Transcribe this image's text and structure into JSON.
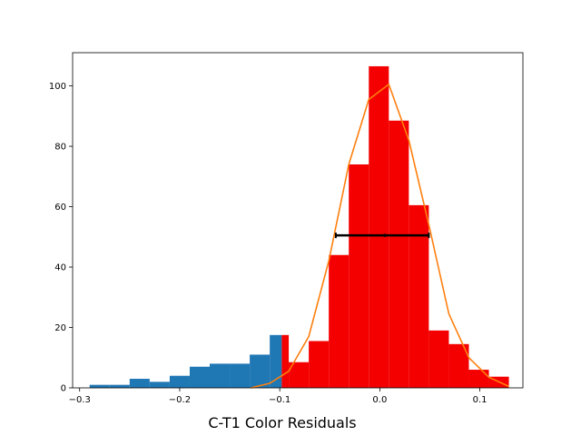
{
  "chart_data": {
    "type": "bar",
    "title": "",
    "xlabel": "C-T1 Color Residuals",
    "ylabel": "",
    "xlim": [
      -0.307,
      0.143
    ],
    "ylim": [
      0,
      111
    ],
    "grid": false,
    "legend": "none",
    "x_ticks": [
      {
        "value": -0.3,
        "label": "−0.3"
      },
      {
        "value": -0.2,
        "label": "−0.2"
      },
      {
        "value": -0.1,
        "label": "−0.1"
      },
      {
        "value": 0.0,
        "label": "0.0"
      },
      {
        "value": 0.1,
        "label": "0.1"
      }
    ],
    "y_ticks": [
      {
        "value": 0,
        "label": "0"
      },
      {
        "value": 20,
        "label": "20"
      },
      {
        "value": 40,
        "label": "40"
      },
      {
        "value": 60,
        "label": "60"
      },
      {
        "value": 80,
        "label": "80"
      },
      {
        "value": 100,
        "label": "100"
      }
    ],
    "series": [
      {
        "kind": "histogram",
        "color": "#1f77b4",
        "bins": [
          {
            "x0": -0.29,
            "x1": -0.27,
            "count": 1
          },
          {
            "x0": -0.27,
            "x1": -0.25,
            "count": 1
          },
          {
            "x0": -0.25,
            "x1": -0.23,
            "count": 3
          },
          {
            "x0": -0.23,
            "x1": -0.21,
            "count": 2
          },
          {
            "x0": -0.21,
            "x1": -0.19,
            "count": 4
          },
          {
            "x0": -0.19,
            "x1": -0.17,
            "count": 7
          },
          {
            "x0": -0.17,
            "x1": -0.15,
            "count": 8
          },
          {
            "x0": -0.15,
            "x1": -0.13,
            "count": 8
          },
          {
            "x0": -0.13,
            "x1": -0.11,
            "count": 11
          },
          {
            "x0": -0.11,
            "x1": -0.098,
            "count": 17.5
          }
        ]
      },
      {
        "kind": "histogram",
        "color": "#f50000",
        "bins": [
          {
            "x0": -0.098,
            "x1": -0.091,
            "count": 17.5
          },
          {
            "x0": -0.091,
            "x1": -0.071,
            "count": 8.5
          },
          {
            "x0": -0.071,
            "x1": -0.051,
            "count": 15.5
          },
          {
            "x0": -0.051,
            "x1": -0.031,
            "count": 44
          },
          {
            "x0": -0.031,
            "x1": -0.011,
            "count": 74
          },
          {
            "x0": -0.011,
            "x1": 0.009,
            "count": 106.5
          },
          {
            "x0": 0.009,
            "x1": 0.029,
            "count": 88.5
          },
          {
            "x0": 0.029,
            "x1": 0.049,
            "count": 60.5
          },
          {
            "x0": 0.049,
            "x1": 0.069,
            "count": 19
          },
          {
            "x0": 0.069,
            "x1": 0.089,
            "count": 14.5
          },
          {
            "x0": 0.089,
            "x1": 0.109,
            "count": 6
          },
          {
            "x0": 0.109,
            "x1": 0.129,
            "count": 3.7
          }
        ]
      },
      {
        "kind": "line",
        "color": "#ff7f0e",
        "points": [
          {
            "x": -0.129,
            "y": 0
          },
          {
            "x": -0.11,
            "y": 1.5
          },
          {
            "x": -0.091,
            "y": 5.5
          },
          {
            "x": -0.071,
            "y": 17
          },
          {
            "x": -0.051,
            "y": 42
          },
          {
            "x": -0.031,
            "y": 74
          },
          {
            "x": -0.011,
            "y": 95.5
          },
          {
            "x": 0.009,
            "y": 100.5
          },
          {
            "x": 0.029,
            "y": 82
          },
          {
            "x": 0.049,
            "y": 54
          },
          {
            "x": 0.069,
            "y": 24.5
          },
          {
            "x": 0.089,
            "y": 10
          },
          {
            "x": 0.109,
            "y": 3.5
          },
          {
            "x": 0.129,
            "y": 0.5
          }
        ]
      },
      {
        "kind": "errorbar",
        "color": "#000000",
        "x": 0.005,
        "xerr_low": -0.044,
        "xerr_high": 0.049,
        "y": 50.5
      }
    ]
  }
}
